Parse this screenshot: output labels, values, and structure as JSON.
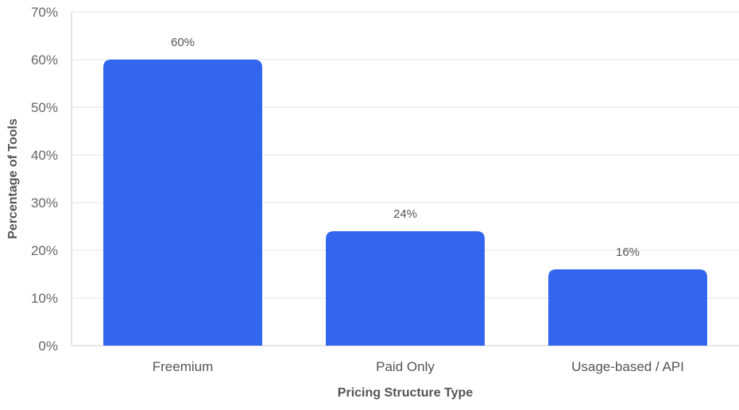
{
  "chart_data": {
    "type": "bar",
    "title": "",
    "xlabel": "Pricing Structure Type",
    "ylabel": "Percentage of Tools",
    "categories": [
      "Freemium",
      "Paid Only",
      "Usage-based / API"
    ],
    "values": [
      60,
      24,
      16
    ],
    "data_labels": [
      "60%",
      "24%",
      "16%"
    ],
    "ylim": [
      0,
      70
    ],
    "yticks": [
      0,
      10,
      20,
      30,
      40,
      50,
      60,
      70
    ],
    "ytick_labels": [
      "0%",
      "10%",
      "20%",
      "30%",
      "40%",
      "50%",
      "60%",
      "70%"
    ],
    "grid": true,
    "legend": "none",
    "colors": {
      "bar": "#3366ee",
      "grid": "#e6e6e6",
      "axis": "#cccccc"
    }
  }
}
